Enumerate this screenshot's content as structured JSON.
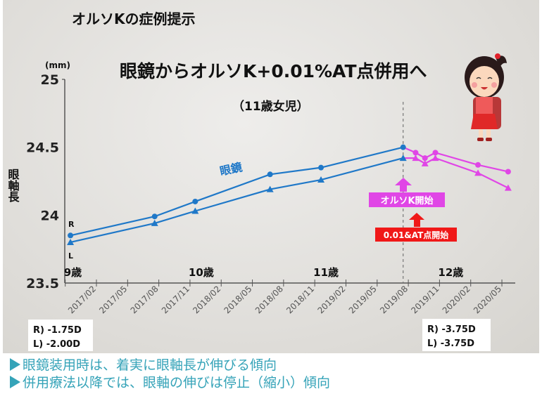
{
  "slide_title": "オルソKの症例提示",
  "notes": [
    "眼鏡装用時は、着実に眼軸長が伸びる傾向",
    "併用療法以降では、眼軸の伸びは停止（縮小）傾向"
  ],
  "colors": {
    "glasses": "#1f78c8",
    "orthok": "#e046e6",
    "atropine": "#f01818",
    "notes": "#35a3b8"
  },
  "chart_data": {
    "type": "line",
    "title": "眼鏡からオルソK+0.01%AT点併用へ",
    "subtitle": "（11歳女児）",
    "ylabel": "眼軸長",
    "yunit": "(mm)",
    "ylim": [
      23.5,
      25
    ],
    "yticks": [
      "25",
      "24.5",
      "24",
      "23.5"
    ],
    "ytick_values": [
      25,
      24.5,
      24,
      23.5
    ],
    "x_unit": "months from 2017/02",
    "xlim": [
      -3,
      39
    ],
    "xtick_labels": [
      "2017/02",
      "2017/05",
      "2017/08",
      "2017/11",
      "2018/02",
      "2018/05",
      "2018/08",
      "2018/11",
      "2019/02",
      "2019/05",
      "2019/08",
      "2019/11",
      "2020/02",
      "2020/05"
    ],
    "age_labels": [
      {
        "label": "9歳",
        "month": -3
      },
      {
        "label": "10歳",
        "month": 9
      },
      {
        "label": "11歳",
        "month": 21
      },
      {
        "label": "12歳",
        "month": 33
      }
    ],
    "treatment_start_month": 29.5,
    "series": [
      {
        "name": "R",
        "marker": "circle",
        "x": [
          -2.5,
          5.6,
          9.5,
          16.7,
          21.6,
          29.5,
          30.7,
          31.6,
          32.6,
          36.7,
          39.6
        ],
        "y": [
          23.85,
          23.99,
          24.1,
          24.3,
          24.35,
          24.5,
          24.46,
          24.42,
          24.46,
          24.37,
          24.32
        ]
      },
      {
        "name": "L",
        "marker": "triangle",
        "x": [
          -2.5,
          5.6,
          9.5,
          16.7,
          21.6,
          29.5,
          30.7,
          31.6,
          32.6,
          36.7,
          39.6
        ],
        "y": [
          23.8,
          23.94,
          24.03,
          24.19,
          24.26,
          24.42,
          24.42,
          24.38,
          24.42,
          24.31,
          24.2
        ]
      }
    ],
    "treatment_switch_index": 5,
    "series_label": "眼鏡",
    "eye_labels": {
      "r": "R",
      "l": "L"
    },
    "annotations": {
      "orthok_start": "オルソK開始",
      "atropine_start": "0.01&AT点開始",
      "before_r": "R) -1.75D",
      "before_l": "L) -2.00D",
      "after_r": "R) -3.75D",
      "after_l": "L) -3.75D"
    }
  }
}
